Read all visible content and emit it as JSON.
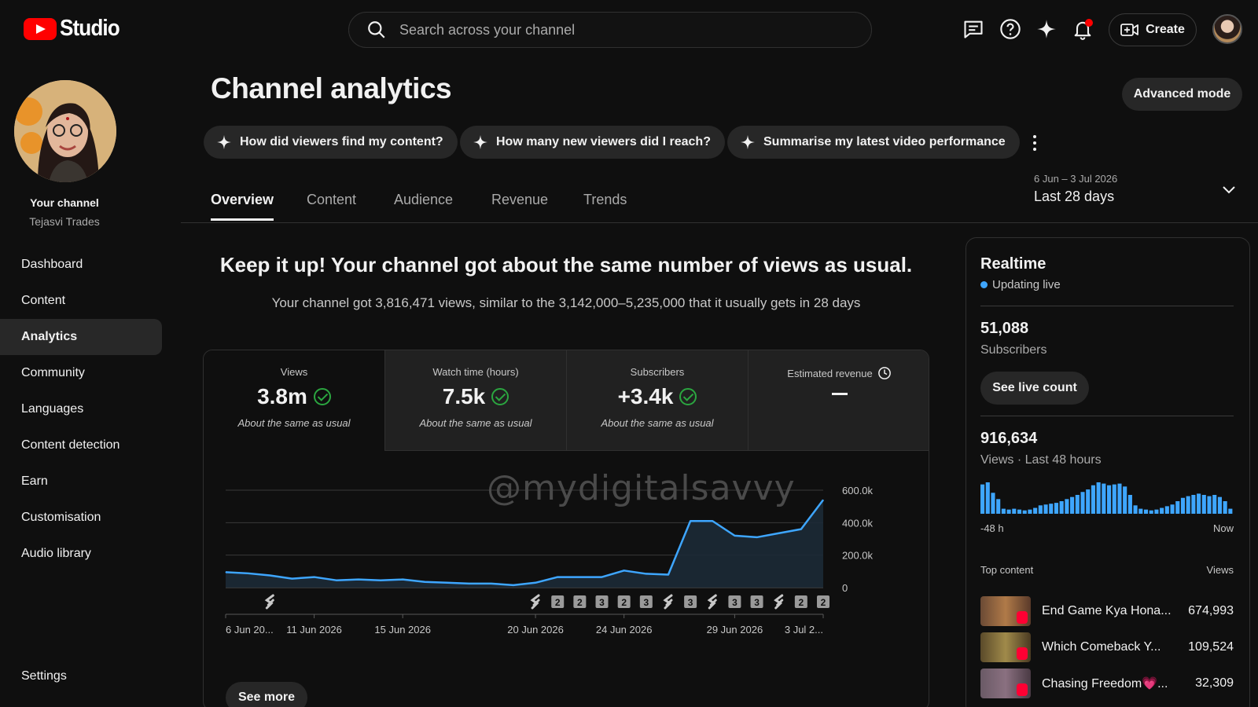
{
  "header": {
    "logo_text": "Studio",
    "search_placeholder": "Search across your channel",
    "create_label": "Create",
    "icons": [
      "feedback-icon",
      "help-icon",
      "sparkle-icon",
      "bell-icon",
      "create-video-icon",
      "account-avatar"
    ]
  },
  "sidebar": {
    "channel_label": "Your channel",
    "channel_name": "Tejasvi Trades",
    "items": [
      {
        "label": "Dashboard"
      },
      {
        "label": "Content"
      },
      {
        "label": "Analytics",
        "active": true
      },
      {
        "label": "Community"
      },
      {
        "label": "Languages"
      },
      {
        "label": "Content detection"
      },
      {
        "label": "Earn"
      },
      {
        "label": "Customisation"
      },
      {
        "label": "Audio library"
      }
    ],
    "settings_label": "Settings"
  },
  "main": {
    "title": "Channel analytics",
    "advanced_mode_label": "Advanced mode",
    "chips": [
      {
        "label": "How did viewers find my content?"
      },
      {
        "label": "How many new viewers did I reach?"
      },
      {
        "label": "Summarise my latest video performance"
      }
    ],
    "tabs": [
      {
        "label": "Overview",
        "active": true
      },
      {
        "label": "Content"
      },
      {
        "label": "Audience"
      },
      {
        "label": "Revenue"
      },
      {
        "label": "Trends"
      }
    ],
    "date_range": {
      "range": "6 Jun – 3 Jul 2026",
      "label": "Last 28 days"
    },
    "headline": "Keep it up! Your channel got about the same number of views as usual.",
    "subline": "Your channel got 3,816,471 views, similar to the 3,142,000–5,235,000 that it usually gets in 28 days",
    "metrics": [
      {
        "label": "Views",
        "value": "3.8m",
        "note": "About the same as usual",
        "selected": true
      },
      {
        "label": "Watch time (hours)",
        "value": "7.5k",
        "note": "About the same as usual"
      },
      {
        "label": "Subscribers",
        "value": "+3.4k",
        "note": "About the same as usual"
      },
      {
        "label": "Estimated revenue",
        "value": "",
        "note": ""
      }
    ],
    "watermark": "@mydigitalsavvy",
    "see_more_label": "See more"
  },
  "chart_data": {
    "type": "area",
    "series": [
      {
        "values": [
          95000,
          88000,
          75000,
          55000,
          65000,
          45000,
          50000,
          45000,
          50000,
          35000,
          30000,
          25000,
          25000,
          15000,
          30000,
          65000,
          65000,
          65000,
          105000,
          85000,
          80000,
          410000,
          410000,
          320000,
          310000,
          335000,
          360000,
          540000
        ]
      }
    ],
    "x_tick_labels": [
      "6 Jun 20...",
      "11 Jun 2026",
      "15 Jun 2026",
      "20 Jun 2026",
      "24 Jun 2026",
      "29 Jun 2026",
      "3 Jul 2..."
    ],
    "x_tick_days": [
      0,
      4,
      8,
      14,
      18,
      23,
      27
    ],
    "y_ticks": [
      "0",
      "200.0k",
      "400.0k",
      "600.0k"
    ],
    "y_tick_values": [
      0,
      200000,
      400000,
      600000
    ],
    "ylim": [
      0,
      600000
    ],
    "grid": true,
    "markers": [
      {
        "day": 2,
        "label": ""
      },
      {
        "day": 14,
        "label": ""
      },
      {
        "day": 15,
        "label": "2"
      },
      {
        "day": 16,
        "label": "2"
      },
      {
        "day": 17,
        "label": "3"
      },
      {
        "day": 18,
        "label": "2"
      },
      {
        "day": 19,
        "label": "3"
      },
      {
        "day": 20,
        "label": ""
      },
      {
        "day": 21,
        "label": "3"
      },
      {
        "day": 22,
        "label": ""
      },
      {
        "day": 23,
        "label": "3"
      },
      {
        "day": 24,
        "label": "3"
      },
      {
        "day": 25,
        "label": ""
      },
      {
        "day": 26,
        "label": "2"
      },
      {
        "day": 27,
        "label": "2"
      }
    ],
    "line_color": "#3ea6ff"
  },
  "realtime": {
    "title": "Realtime",
    "status": "Updating live",
    "subscribers_value": "51,088",
    "subscribers_label": "Subscribers",
    "live_count_label": "See live count",
    "views_value": "916,634",
    "views_label": "Views · Last 48 hours",
    "bars": [
      70,
      75,
      50,
      35,
      12,
      10,
      12,
      10,
      8,
      10,
      14,
      20,
      22,
      24,
      26,
      30,
      35,
      40,
      45,
      52,
      58,
      68,
      75,
      72,
      68,
      70,
      72,
      65,
      45,
      20,
      12,
      10,
      8,
      10,
      14,
      18,
      22,
      30,
      38,
      42,
      45,
      48,
      45,
      42,
      45,
      40,
      30,
      12
    ],
    "axis_start": "-48 h",
    "axis_end": "Now",
    "top_content_label": "Top content",
    "top_content_views_label": "Views",
    "top_content": [
      {
        "title": "End Game Kya Hona...",
        "views": "674,993"
      },
      {
        "title": "Which Comeback Y...",
        "views": "109,524"
      },
      {
        "title": "Chasing Freedom💗...",
        "views": "32,309"
      }
    ],
    "bar_color": "#3ea6ff"
  }
}
